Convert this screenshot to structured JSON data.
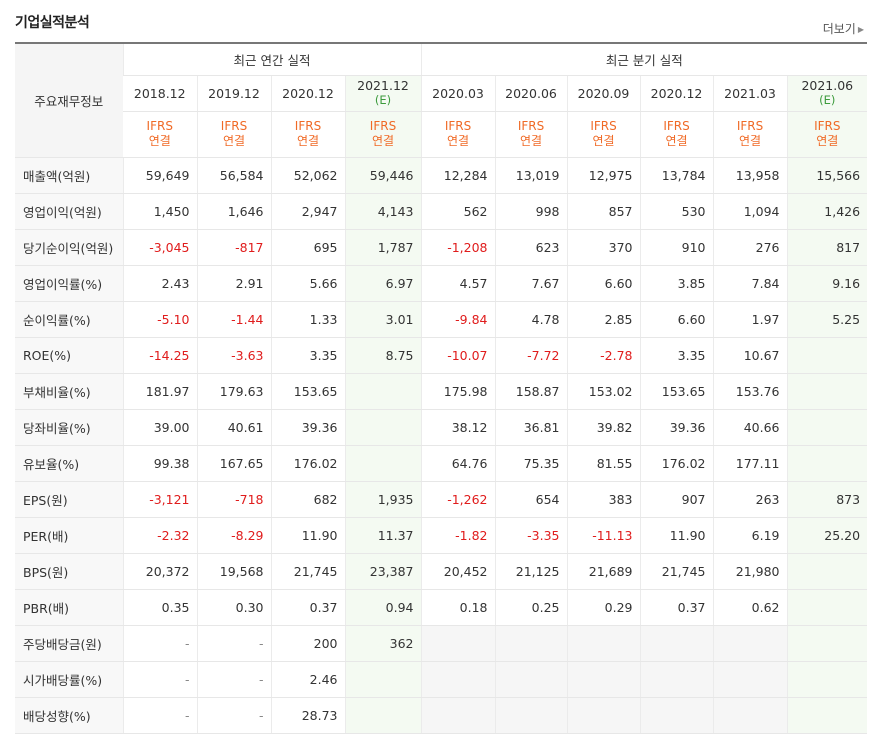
{
  "title": "기업실적분석",
  "more_label": "더보기",
  "header": {
    "row_label": "주요재무정보",
    "groups": [
      "최근 연간 실적",
      "최근 분기 실적"
    ]
  },
  "periods": [
    {
      "label": "2018.12",
      "est": ""
    },
    {
      "label": "2019.12",
      "est": ""
    },
    {
      "label": "2020.12",
      "est": ""
    },
    {
      "label": "2021.12",
      "est": "(E)"
    },
    {
      "label": "2020.03",
      "est": ""
    },
    {
      "label": "2020.06",
      "est": ""
    },
    {
      "label": "2020.09",
      "est": ""
    },
    {
      "label": "2020.12",
      "est": ""
    },
    {
      "label": "2021.03",
      "est": ""
    },
    {
      "label": "2021.06",
      "est": "(E)"
    }
  ],
  "basis": {
    "line1": "IFRS",
    "line2": "연결"
  },
  "rows": [
    {
      "label": "매출액(억원)",
      "values": [
        "59,649",
        "56,584",
        "52,062",
        "59,446",
        "12,284",
        "13,019",
        "12,975",
        "13,784",
        "13,958",
        "15,566"
      ]
    },
    {
      "label": "영업이익(억원)",
      "values": [
        "1,450",
        "1,646",
        "2,947",
        "4,143",
        "562",
        "998",
        "857",
        "530",
        "1,094",
        "1,426"
      ]
    },
    {
      "label": "당기순이익(억원)",
      "values": [
        "-3,045",
        "-817",
        "695",
        "1,787",
        "-1,208",
        "623",
        "370",
        "910",
        "276",
        "817"
      ]
    },
    {
      "label": "영업이익률(%)",
      "values": [
        "2.43",
        "2.91",
        "5.66",
        "6.97",
        "4.57",
        "7.67",
        "6.60",
        "3.85",
        "7.84",
        "9.16"
      ]
    },
    {
      "label": "순이익률(%)",
      "values": [
        "-5.10",
        "-1.44",
        "1.33",
        "3.01",
        "-9.84",
        "4.78",
        "2.85",
        "6.60",
        "1.97",
        "5.25"
      ]
    },
    {
      "label": "ROE(%)",
      "values": [
        "-14.25",
        "-3.63",
        "3.35",
        "8.75",
        "-10.07",
        "-7.72",
        "-2.78",
        "3.35",
        "10.67",
        ""
      ]
    },
    {
      "label": "부채비율(%)",
      "values": [
        "181.97",
        "179.63",
        "153.65",
        "",
        "175.98",
        "158.87",
        "153.02",
        "153.65",
        "153.76",
        ""
      ]
    },
    {
      "label": "당좌비율(%)",
      "values": [
        "39.00",
        "40.61",
        "39.36",
        "",
        "38.12",
        "36.81",
        "39.82",
        "39.36",
        "40.66",
        ""
      ]
    },
    {
      "label": "유보율(%)",
      "values": [
        "99.38",
        "167.65",
        "176.02",
        "",
        "64.76",
        "75.35",
        "81.55",
        "176.02",
        "177.11",
        ""
      ]
    },
    {
      "label": "EPS(원)",
      "values": [
        "-3,121",
        "-718",
        "682",
        "1,935",
        "-1,262",
        "654",
        "383",
        "907",
        "263",
        "873"
      ]
    },
    {
      "label": "PER(배)",
      "values": [
        "-2.32",
        "-8.29",
        "11.90",
        "11.37",
        "-1.82",
        "-3.35",
        "-11.13",
        "11.90",
        "6.19",
        "25.20"
      ]
    },
    {
      "label": "BPS(원)",
      "values": [
        "20,372",
        "19,568",
        "21,745",
        "23,387",
        "20,452",
        "21,125",
        "21,689",
        "21,745",
        "21,980",
        ""
      ]
    },
    {
      "label": "PBR(배)",
      "values": [
        "0.35",
        "0.30",
        "0.37",
        "0.94",
        "0.18",
        "0.25",
        "0.29",
        "0.37",
        "0.62",
        ""
      ]
    },
    {
      "label": "주당배당금(원)",
      "values": [
        "-",
        "-",
        "200",
        "362",
        "",
        "",
        "",
        "",
        "",
        ""
      ],
      "quarter_empty": true
    },
    {
      "label": "시가배당률(%)",
      "values": [
        "-",
        "-",
        "2.46",
        "",
        "",
        "",
        "",
        "",
        "",
        ""
      ],
      "quarter_empty": true
    },
    {
      "label": "배당성향(%)",
      "values": [
        "-",
        "-",
        "28.73",
        "",
        "",
        "",
        "",
        "",
        "",
        ""
      ],
      "quarter_empty": true
    }
  ]
}
